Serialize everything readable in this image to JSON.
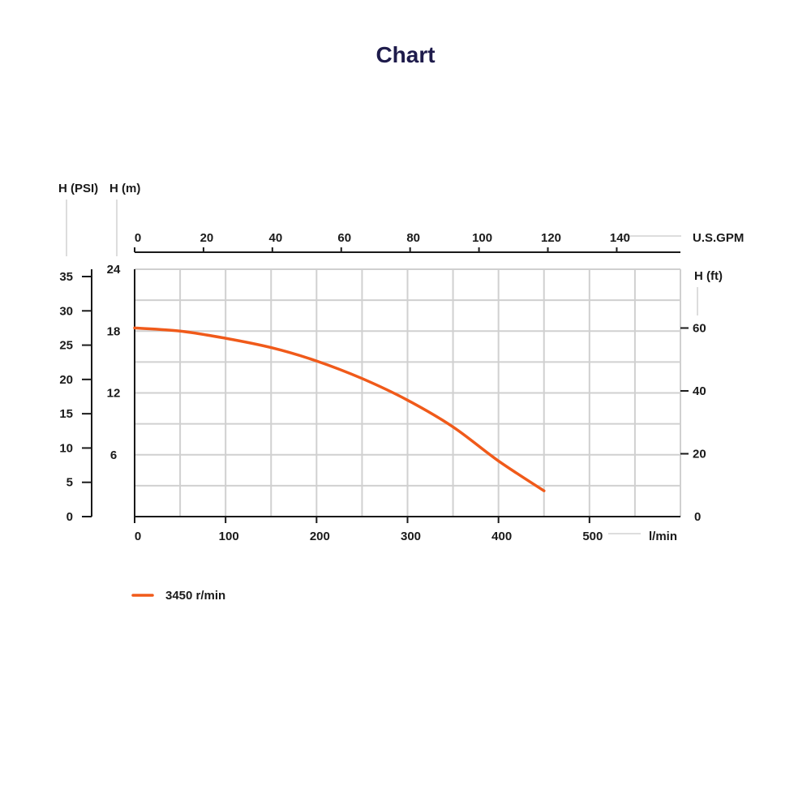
{
  "page": {
    "title": "Chart"
  },
  "chart_data": {
    "type": "line",
    "title": "Chart",
    "grid": true,
    "legend_position": "bottom-left",
    "colors": {
      "curve": "#f05a1a",
      "grid": "#d0d0d0",
      "axis": "#1a1a1a",
      "title": "#1e1b4b",
      "leader": "#bbbbbb"
    },
    "axes": {
      "x_bottom": {
        "unit": "l/min",
        "ticks": [
          0,
          100,
          200,
          300,
          400,
          500
        ],
        "range": [
          0,
          600
        ]
      },
      "x_top": {
        "unit": "U.S.GPM",
        "ticks": [
          0,
          20,
          40,
          60,
          80,
          100,
          120,
          140
        ],
        "range": [
          0,
          158.5
        ]
      },
      "y_psi": {
        "label": "H (PSI)",
        "ticks": [
          0,
          5,
          10,
          15,
          20,
          25,
          30,
          35
        ],
        "range": [
          0,
          35
        ]
      },
      "y_m": {
        "label": "H (m)",
        "ticks": [
          6,
          12,
          18,
          24
        ],
        "range": [
          0,
          24
        ]
      },
      "y_ft": {
        "label": "H (ft)",
        "ticks": [
          0,
          20,
          40,
          60
        ],
        "range": [
          0,
          78.7
        ]
      }
    },
    "series": [
      {
        "name": "3450 r/min",
        "x": [
          0,
          50,
          100,
          150,
          200,
          250,
          300,
          350,
          400,
          450
        ],
        "y": [
          18.3,
          18.0,
          17.3,
          16.4,
          15.1,
          13.4,
          11.3,
          8.7,
          5.4,
          2.5
        ]
      }
    ]
  }
}
